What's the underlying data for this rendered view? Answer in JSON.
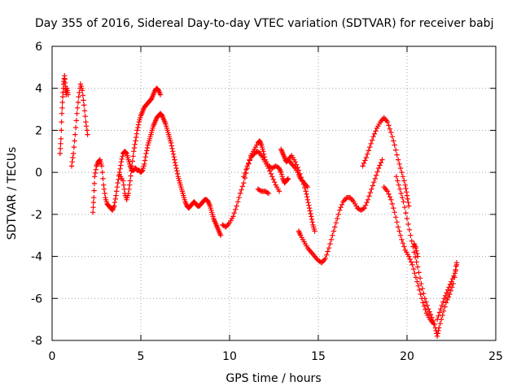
{
  "chart_data": {
    "type": "scatter",
    "title": "Day 355 of 2016, Sidereal Day-to-day VTEC variation (SDTVAR) for receiver babj",
    "xlabel": "GPS time / hours",
    "ylabel": "SDTVAR / TECUs",
    "xlim": [
      0,
      25
    ],
    "ylim": [
      -8,
      6
    ],
    "xticks": [
      0,
      5,
      10,
      15,
      20,
      25
    ],
    "yticks": [
      -8,
      -6,
      -4,
      -2,
      0,
      2,
      4,
      6
    ],
    "grid": true,
    "marker": "+",
    "color": "#ff0000",
    "segments": [
      [
        [
          0.45,
          0.9
        ],
        [
          0.5,
          1.6
        ],
        [
          0.55,
          2.8
        ],
        [
          0.6,
          3.6
        ],
        [
          0.65,
          4.2
        ],
        [
          0.7,
          4.6
        ],
        [
          0.75,
          4.1
        ],
        [
          0.8,
          3.7
        ],
        [
          0.85,
          4.0
        ],
        [
          0.9,
          3.7
        ]
      ],
      [
        [
          1.1,
          0.3
        ],
        [
          1.2,
          0.9
        ],
        [
          1.3,
          1.8
        ],
        [
          1.4,
          2.8
        ],
        [
          1.5,
          3.6
        ],
        [
          1.6,
          4.2
        ],
        [
          1.7,
          3.9
        ],
        [
          1.8,
          3.2
        ],
        [
          1.9,
          2.4
        ],
        [
          2.0,
          1.8
        ]
      ],
      [
        [
          2.3,
          -1.9
        ],
        [
          2.35,
          -1.2
        ],
        [
          2.4,
          -0.2
        ],
        [
          2.5,
          0.3
        ],
        [
          2.6,
          0.5
        ],
        [
          2.7,
          0.6
        ],
        [
          2.8,
          0.3
        ],
        [
          2.9,
          -0.6
        ],
        [
          3.0,
          -1.2
        ],
        [
          3.1,
          -1.5
        ],
        [
          3.2,
          -1.6
        ],
        [
          3.3,
          -1.7
        ],
        [
          3.4,
          -1.8
        ],
        [
          3.5,
          -1.6
        ],
        [
          3.6,
          -1.1
        ],
        [
          3.7,
          -0.5
        ],
        [
          3.8,
          0.0
        ],
        [
          3.9,
          0.5
        ],
        [
          4.0,
          0.9
        ],
        [
          4.1,
          1.0
        ],
        [
          4.2,
          0.9
        ],
        [
          4.3,
          0.6
        ],
        [
          4.4,
          0.3
        ],
        [
          4.5,
          0.1
        ],
        [
          4.6,
          0.1
        ],
        [
          4.7,
          0.2
        ],
        [
          4.8,
          0.1
        ],
        [
          4.9,
          0.1
        ],
        [
          5.0,
          0.0
        ],
        [
          5.1,
          0.1
        ],
        [
          5.2,
          0.4
        ],
        [
          5.3,
          0.9
        ],
        [
          5.4,
          1.3
        ],
        [
          5.5,
          1.6
        ],
        [
          5.6,
          1.9
        ],
        [
          5.7,
          2.2
        ],
        [
          5.8,
          2.4
        ],
        [
          5.9,
          2.6
        ],
        [
          6.0,
          2.7
        ],
        [
          6.1,
          2.8
        ],
        [
          6.2,
          2.7
        ],
        [
          6.3,
          2.5
        ],
        [
          6.4,
          2.3
        ],
        [
          6.5,
          2.0
        ],
        [
          6.6,
          1.7
        ],
        [
          6.7,
          1.4
        ],
        [
          6.8,
          1.0
        ],
        [
          6.9,
          0.6
        ],
        [
          7.0,
          0.2
        ],
        [
          7.1,
          -0.2
        ],
        [
          7.2,
          -0.5
        ],
        [
          7.3,
          -0.8
        ],
        [
          7.4,
          -1.1
        ],
        [
          7.5,
          -1.4
        ],
        [
          7.6,
          -1.6
        ],
        [
          7.7,
          -1.7
        ],
        [
          7.8,
          -1.6
        ],
        [
          7.9,
          -1.5
        ],
        [
          8.0,
          -1.4
        ],
        [
          8.1,
          -1.5
        ],
        [
          8.2,
          -1.6
        ],
        [
          8.3,
          -1.6
        ],
        [
          8.4,
          -1.5
        ],
        [
          8.5,
          -1.4
        ],
        [
          8.6,
          -1.3
        ],
        [
          8.7,
          -1.3
        ],
        [
          8.8,
          -1.4
        ],
        [
          8.9,
          -1.6
        ],
        [
          9.0,
          -1.9
        ],
        [
          9.1,
          -2.2
        ],
        [
          9.2,
          -2.4
        ],
        [
          9.3,
          -2.6
        ],
        [
          9.4,
          -2.8
        ],
        [
          9.5,
          -3.0
        ]
      ],
      [
        [
          3.8,
          -0.1
        ],
        [
          4.0,
          -0.4
        ],
        [
          4.1,
          -1.0
        ],
        [
          4.2,
          -1.3
        ],
        [
          4.3,
          -1.0
        ],
        [
          4.4,
          -0.4
        ],
        [
          4.5,
          0.3
        ],
        [
          4.6,
          1.0
        ],
        [
          4.7,
          1.5
        ],
        [
          4.8,
          2.0
        ],
        [
          4.9,
          2.4
        ],
        [
          5.0,
          2.7
        ],
        [
          5.1,
          2.9
        ],
        [
          5.2,
          3.1
        ],
        [
          5.3,
          3.2
        ],
        [
          5.4,
          3.3
        ],
        [
          5.5,
          3.4
        ],
        [
          5.6,
          3.5
        ],
        [
          5.7,
          3.7
        ],
        [
          5.8,
          3.9
        ],
        [
          5.9,
          4.0
        ],
        [
          6.0,
          3.9
        ],
        [
          6.1,
          3.7
        ]
      ],
      [
        [
          9.6,
          -2.5
        ],
        [
          9.8,
          -2.6
        ],
        [
          10.0,
          -2.4
        ],
        [
          10.2,
          -2.1
        ],
        [
          10.4,
          -1.6
        ],
        [
          10.6,
          -1.0
        ],
        [
          10.8,
          -0.5
        ],
        [
          11.0,
          0.2
        ],
        [
          11.2,
          0.8
        ],
        [
          11.4,
          1.1
        ],
        [
          11.6,
          1.4
        ],
        [
          11.7,
          1.5
        ],
        [
          11.8,
          1.3
        ],
        [
          11.9,
          1.0
        ],
        [
          12.0,
          0.6
        ],
        [
          12.2,
          0.3
        ],
        [
          12.4,
          0.2
        ],
        [
          12.6,
          0.3
        ],
        [
          12.8,
          0.2
        ],
        [
          12.9,
          0.0
        ],
        [
          13.0,
          -0.3
        ],
        [
          13.1,
          -0.5
        ],
        [
          13.2,
          -0.4
        ],
        [
          13.3,
          -0.3
        ]
      ],
      [
        [
          10.8,
          -0.2
        ],
        [
          11.0,
          0.3
        ],
        [
          11.2,
          0.7
        ],
        [
          11.4,
          0.9
        ],
        [
          11.6,
          1.0
        ],
        [
          11.8,
          0.8
        ],
        [
          12.0,
          0.5
        ],
        [
          12.2,
          0.2
        ],
        [
          12.4,
          -0.2
        ],
        [
          12.6,
          -0.6
        ],
        [
          12.8,
          -0.9
        ]
      ],
      [
        [
          11.6,
          -0.8
        ],
        [
          11.8,
          -0.9
        ],
        [
          12.0,
          -0.9
        ],
        [
          12.2,
          -1.0
        ]
      ],
      [
        [
          12.9,
          1.1
        ],
        [
          13.0,
          0.9
        ],
        [
          13.1,
          0.7
        ],
        [
          13.2,
          0.5
        ],
        [
          13.3,
          0.6
        ],
        [
          13.5,
          0.8
        ],
        [
          13.7,
          0.5
        ],
        [
          13.9,
          0.1
        ],
        [
          14.1,
          -0.4
        ],
        [
          14.3,
          -0.9
        ],
        [
          14.4,
          -1.3
        ],
        [
          14.5,
          -1.7
        ],
        [
          14.6,
          -2.1
        ],
        [
          14.7,
          -2.5
        ],
        [
          14.8,
          -2.8
        ]
      ],
      [
        [
          13.3,
          0.6
        ],
        [
          13.5,
          0.4
        ],
        [
          13.7,
          0.2
        ],
        [
          13.9,
          -0.1
        ],
        [
          14.0,
          -0.3
        ],
        [
          14.2,
          -0.5
        ],
        [
          14.4,
          -0.7
        ]
      ],
      [
        [
          13.9,
          -2.8
        ],
        [
          14.0,
          -3.0
        ],
        [
          14.2,
          -3.3
        ],
        [
          14.4,
          -3.6
        ],
        [
          14.6,
          -3.8
        ],
        [
          14.8,
          -4.0
        ],
        [
          15.0,
          -4.2
        ],
        [
          15.2,
          -4.3
        ],
        [
          15.4,
          -4.1
        ],
        [
          15.6,
          -3.6
        ],
        [
          15.8,
          -3.0
        ],
        [
          16.0,
          -2.4
        ],
        [
          16.2,
          -1.8
        ],
        [
          16.4,
          -1.4
        ],
        [
          16.6,
          -1.2
        ],
        [
          16.8,
          -1.2
        ],
        [
          17.0,
          -1.4
        ],
        [
          17.2,
          -1.7
        ],
        [
          17.4,
          -1.8
        ],
        [
          17.6,
          -1.7
        ],
        [
          17.8,
          -1.3
        ],
        [
          18.0,
          -0.8
        ],
        [
          18.2,
          -0.3
        ],
        [
          18.4,
          0.2
        ],
        [
          18.6,
          0.6
        ]
      ],
      [
        [
          17.5,
          0.3
        ],
        [
          17.7,
          0.7
        ],
        [
          17.9,
          1.2
        ],
        [
          18.1,
          1.7
        ],
        [
          18.3,
          2.1
        ],
        [
          18.5,
          2.4
        ],
        [
          18.7,
          2.6
        ],
        [
          18.9,
          2.4
        ],
        [
          19.1,
          1.9
        ],
        [
          19.3,
          1.3
        ],
        [
          19.5,
          0.6
        ],
        [
          19.7,
          0.0
        ],
        [
          19.9,
          -0.6
        ],
        [
          20.0,
          -1.1
        ],
        [
          20.1,
          -1.6
        ]
      ],
      [
        [
          18.7,
          -0.7
        ],
        [
          18.9,
          -0.9
        ],
        [
          19.1,
          -1.3
        ],
        [
          19.3,
          -1.9
        ],
        [
          19.5,
          -2.6
        ],
        [
          19.7,
          -3.2
        ],
        [
          19.9,
          -3.7
        ],
        [
          20.1,
          -4.0
        ],
        [
          20.3,
          -4.4
        ],
        [
          20.5,
          -5.0
        ],
        [
          20.7,
          -5.6
        ],
        [
          20.9,
          -6.2
        ],
        [
          21.1,
          -6.7
        ],
        [
          21.3,
          -7.0
        ],
        [
          21.5,
          -7.2
        ]
      ],
      [
        [
          19.4,
          -0.2
        ],
        [
          19.6,
          -0.8
        ],
        [
          19.8,
          -1.4
        ],
        [
          20.0,
          -2.2
        ],
        [
          20.2,
          -3.0
        ],
        [
          20.4,
          -3.8
        ],
        [
          20.6,
          -4.5
        ],
        [
          20.8,
          -5.3
        ],
        [
          21.0,
          -6.0
        ],
        [
          21.2,
          -6.5
        ],
        [
          21.4,
          -6.9
        ],
        [
          21.6,
          -7.4
        ],
        [
          21.7,
          -7.8
        ],
        [
          21.8,
          -7.4
        ],
        [
          22.0,
          -6.8
        ],
        [
          22.2,
          -6.2
        ],
        [
          22.4,
          -5.8
        ],
        [
          22.6,
          -5.3
        ],
        [
          22.8,
          -4.4
        ]
      ],
      [
        [
          20.4,
          -3.4
        ],
        [
          20.5,
          -3.6
        ],
        [
          20.6,
          -4.0
        ]
      ],
      [
        [
          21.7,
          -7.0
        ],
        [
          21.9,
          -6.5
        ],
        [
          22.1,
          -6.0
        ],
        [
          22.3,
          -5.6
        ],
        [
          22.5,
          -5.2
        ],
        [
          22.7,
          -4.8
        ],
        [
          22.8,
          -4.3
        ]
      ]
    ]
  }
}
